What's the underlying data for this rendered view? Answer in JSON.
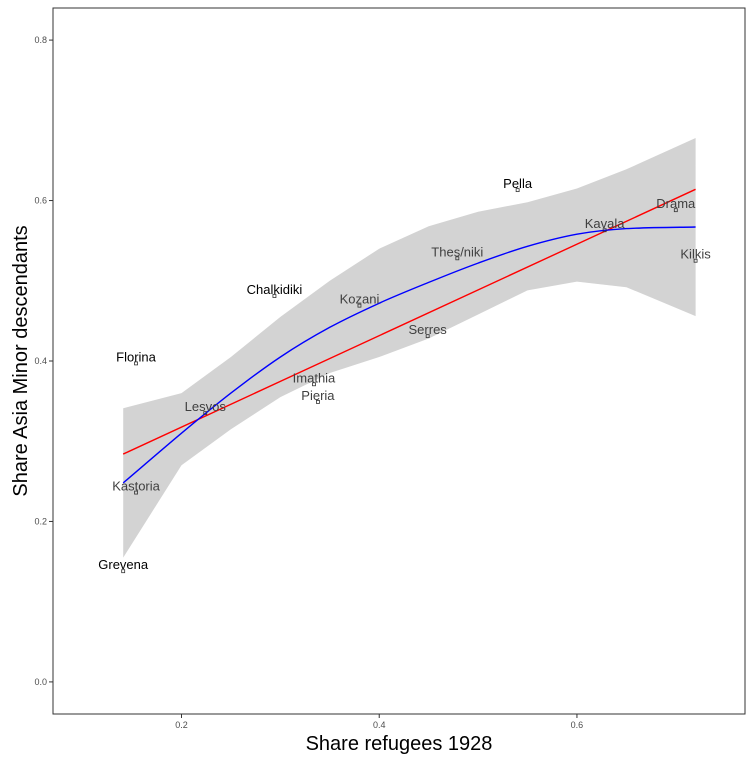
{
  "chart_data": {
    "type": "scatter",
    "xlabel": "Share refugees 1928",
    "ylabel": "Share Asia Minor descendants",
    "xlim": [
      0.07,
      0.77
    ],
    "ylim": [
      -0.04,
      0.84
    ],
    "x_ticks": [
      0.2,
      0.4,
      0.6
    ],
    "x_tick_labels": [
      "0.2",
      "0.4",
      "0.6"
    ],
    "y_ticks": [
      0.0,
      0.2,
      0.4,
      0.6,
      0.8
    ],
    "y_tick_labels": [
      "0.0",
      "0.2",
      "0.4",
      "0.6",
      "0.8"
    ],
    "grid": false,
    "colors": {
      "linear_fit": "#ff0000",
      "loess_fit": "#0000ff",
      "confidence_band": "#d3d3d3",
      "label_black": "#000000",
      "label_gray": "#404040",
      "point": "#333333"
    },
    "points": [
      {
        "name": "Pella",
        "x": 0.54,
        "y": 0.613,
        "color": "#000000"
      },
      {
        "name": "Drama",
        "x": 0.7,
        "y": 0.588,
        "color": "#404040"
      },
      {
        "name": "Kavala",
        "x": 0.628,
        "y": 0.563,
        "color": "#404040"
      },
      {
        "name": "Kilkis",
        "x": 0.72,
        "y": 0.525,
        "color": "#404040"
      },
      {
        "name": "Thes/niki",
        "x": 0.479,
        "y": 0.528,
        "color": "#404040"
      },
      {
        "name": "Chalkidiki",
        "x": 0.294,
        "y": 0.481,
        "color": "#000000"
      },
      {
        "name": "Kozani",
        "x": 0.38,
        "y": 0.469,
        "color": "#404040"
      },
      {
        "name": "Serres",
        "x": 0.449,
        "y": 0.431,
        "color": "#404040"
      },
      {
        "name": "Florina",
        "x": 0.154,
        "y": 0.397,
        "color": "#000000"
      },
      {
        "name": "Imathia",
        "x": 0.334,
        "y": 0.371,
        "color": "#404040"
      },
      {
        "name": "Pieria",
        "x": 0.338,
        "y": 0.349,
        "color": "#404040"
      },
      {
        "name": "Lesvos",
        "x": 0.224,
        "y": 0.335,
        "color": "#404040"
      },
      {
        "name": "Kastoria",
        "x": 0.154,
        "y": 0.236,
        "color": "#404040"
      },
      {
        "name": "Grevena",
        "x": 0.141,
        "y": 0.138,
        "color": "#000000"
      }
    ],
    "linear_fit": {
      "x": [
        0.141,
        0.72
      ],
      "y": [
        0.284,
        0.614
      ]
    },
    "loess_fit": {
      "x": [
        0.141,
        0.2,
        0.25,
        0.3,
        0.35,
        0.4,
        0.45,
        0.5,
        0.55,
        0.6,
        0.65,
        0.72
      ],
      "y": [
        0.248,
        0.31,
        0.36,
        0.405,
        0.442,
        0.472,
        0.498,
        0.522,
        0.543,
        0.558,
        0.565,
        0.567
      ]
    },
    "confidence_band": {
      "x": [
        0.141,
        0.2,
        0.25,
        0.3,
        0.35,
        0.4,
        0.45,
        0.5,
        0.55,
        0.6,
        0.65,
        0.72
      ],
      "upper": [
        0.341,
        0.36,
        0.405,
        0.455,
        0.5,
        0.54,
        0.568,
        0.586,
        0.598,
        0.615,
        0.639,
        0.678
      ],
      "lower": [
        0.155,
        0.27,
        0.315,
        0.355,
        0.385,
        0.405,
        0.428,
        0.458,
        0.488,
        0.499,
        0.492,
        0.456
      ]
    }
  }
}
